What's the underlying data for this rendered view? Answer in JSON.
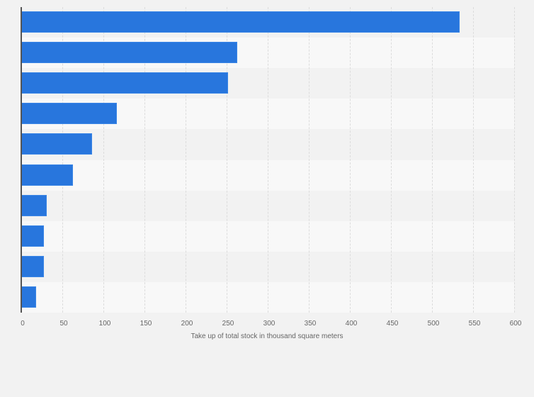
{
  "chart_data": {
    "type": "bar",
    "orientation": "horizontal",
    "title": "",
    "xlabel": "Take up of total stock in thousand square meters",
    "ylabel": "",
    "categories": [
      "",
      "",
      "",
      "",
      "",
      "",
      "",
      "",
      "",
      ""
    ],
    "values": [
      534,
      263,
      252,
      116,
      86,
      63,
      31,
      28,
      27.5,
      18
    ],
    "xlim": [
      0,
      600
    ],
    "xticks": [
      "0",
      "50",
      "100",
      "150",
      "200",
      "250",
      "300",
      "350",
      "400",
      "450",
      "500",
      "550",
      "600"
    ],
    "grid": true,
    "legend": null,
    "bar_color": "#2876dd"
  }
}
